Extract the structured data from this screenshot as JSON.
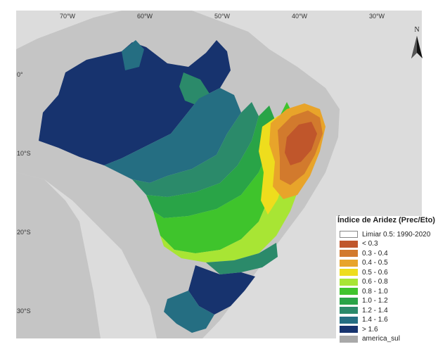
{
  "axes": {
    "longitude_ticks": [
      {
        "label": "70°W",
        "lon": -70
      },
      {
        "label": "60°W",
        "lon": -60
      },
      {
        "label": "50°W",
        "lon": -50
      },
      {
        "label": "40°W",
        "lon": -40
      },
      {
        "label": "30°W",
        "lon": -30
      }
    ],
    "latitude_ticks": [
      {
        "label": "0°",
        "lat": 0
      },
      {
        "label": "10°S",
        "lat": -10
      },
      {
        "label": "20°S",
        "lat": -20
      },
      {
        "label": "30°S",
        "lat": -30
      }
    ]
  },
  "north_arrow": {
    "label": "N"
  },
  "legend": {
    "title": "Índice de Aridez (Prec/Eto)",
    "items": [
      {
        "label": "Limiar 0.5: 1990-2020",
        "color": "#ffffff",
        "outline": true
      },
      {
        "label": "< 0.3",
        "color": "#c0562b"
      },
      {
        "label": "0.3 - 0.4",
        "color": "#d27a2d"
      },
      {
        "label": "0.4 - 0.5",
        "color": "#e8a42a"
      },
      {
        "label": "0.5 - 0.6",
        "color": "#eedd1d"
      },
      {
        "label": "0.6 - 0.8",
        "color": "#a8e534"
      },
      {
        "label": "0.8 - 1.0",
        "color": "#3fc42c"
      },
      {
        "label": "1.0 - 1.2",
        "color": "#29a447"
      },
      {
        "label": "1.2 - 1.4",
        "color": "#2b8a6a"
      },
      {
        "label": "1.4 - 1.6",
        "color": "#256e82"
      },
      {
        "label": "> 1.6",
        "color": "#17336e"
      },
      {
        "label": "america_sul",
        "color": "#a9a9a9"
      }
    ]
  },
  "colors": {
    "land": "#c5c5c5",
    "ocean": "#dcdcdc"
  }
}
